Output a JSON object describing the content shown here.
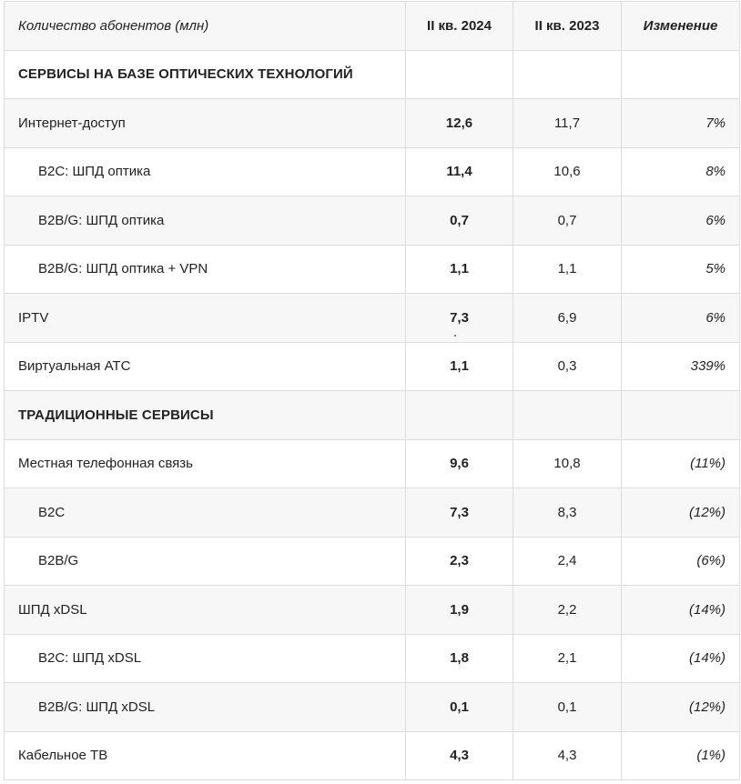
{
  "header": {
    "label": "Количество абонентов (млн)",
    "q2_2024": "II кв. 2024",
    "q2_2023": "II кв. 2023",
    "change": "Изменение"
  },
  "rows": [
    {
      "label": "СЕРВИСЫ НА БАЗЕ ОПТИЧЕСКИХ ТЕХНОЛОГИЙ",
      "v2024": "",
      "v2023": "",
      "change": ""
    },
    {
      "label": "Интернет-доступ",
      "v2024": "12,6",
      "v2023": "11,7",
      "change": "7%"
    },
    {
      "label": "B2C: ШПД оптика",
      "v2024": "11,4",
      "v2023": "10,6",
      "change": "8%"
    },
    {
      "label": "B2B/G: ШПД оптика",
      "v2024": "0,7",
      "v2023": "0,7",
      "change": "6%"
    },
    {
      "label": "B2B/G: ШПД оптика + VPN",
      "v2024": "1,1",
      "v2023": "1,1",
      "change": "5%"
    },
    {
      "label": "IPTV",
      "v2024": "7,3",
      "v2023": "6,9",
      "change": "6%"
    },
    {
      "label": "Виртуальная АТС",
      "v2024": "1,1",
      "v2023": "0,3",
      "change": "339%"
    },
    {
      "label": "ТРАДИЦИОННЫЕ СЕРВИСЫ",
      "v2024": "",
      "v2023": "",
      "change": ""
    },
    {
      "label": "Местная телефонная связь",
      "v2024": "9,6",
      "v2023": "10,8",
      "change": "(11%)"
    },
    {
      "label": "B2C",
      "v2024": "7,3",
      "v2023": "8,3",
      "change": "(12%)"
    },
    {
      "label": "B2B/G",
      "v2024": "2,3",
      "v2023": "2,4",
      "change": "(6%)"
    },
    {
      "label": "ШПД xDSL",
      "v2024": "1,9",
      "v2023": "2,2",
      "change": "(14%)"
    },
    {
      "label": "B2C: ШПД xDSL",
      "v2024": "1,8",
      "v2023": "2,1",
      "change": "(14%)"
    },
    {
      "label": "B2B/G: ШПД xDSL",
      "v2024": "0,1",
      "v2023": "0,1",
      "change": "(12%)"
    },
    {
      "label": "Кабельное ТВ",
      "v2024": "4,3",
      "v2023": "4,3",
      "change": "(1%)"
    }
  ]
}
